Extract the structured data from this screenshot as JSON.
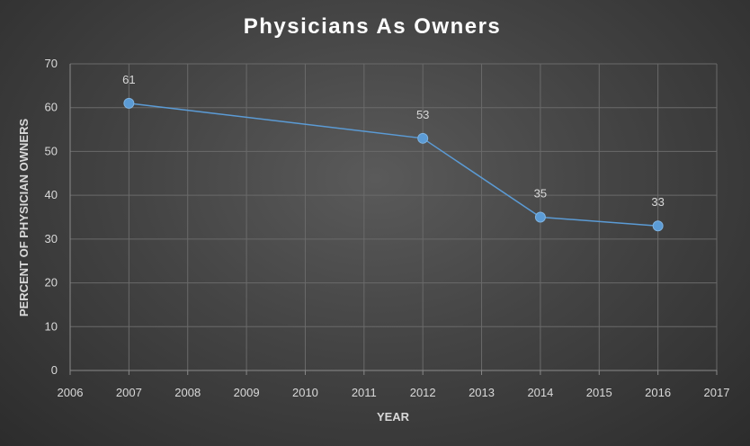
{
  "chart_data": {
    "type": "line",
    "title": "Physicians As Owners",
    "xlabel": "YEAR",
    "ylabel": "PERCENT  OF PHYSICIAN OWNERS",
    "xlim": [
      2006,
      2017
    ],
    "ylim": [
      0,
      70
    ],
    "xticks": [
      "2006",
      "2007",
      "2008",
      "2009",
      "2010",
      "2011",
      "2012",
      "2013",
      "2014",
      "2015",
      "2016",
      "2017"
    ],
    "yticks": [
      "0",
      "10",
      "20",
      "30",
      "40",
      "50",
      "60",
      "70"
    ],
    "grid": true,
    "series": [
      {
        "color": "#5b9bd5",
        "points": [
          {
            "x": 2007,
            "y": 61,
            "label": "61"
          },
          {
            "x": 2012,
            "y": 53,
            "label": "53"
          },
          {
            "x": 2014,
            "y": 35,
            "label": "35"
          },
          {
            "x": 2016,
            "y": 33,
            "label": "33"
          }
        ]
      }
    ]
  }
}
